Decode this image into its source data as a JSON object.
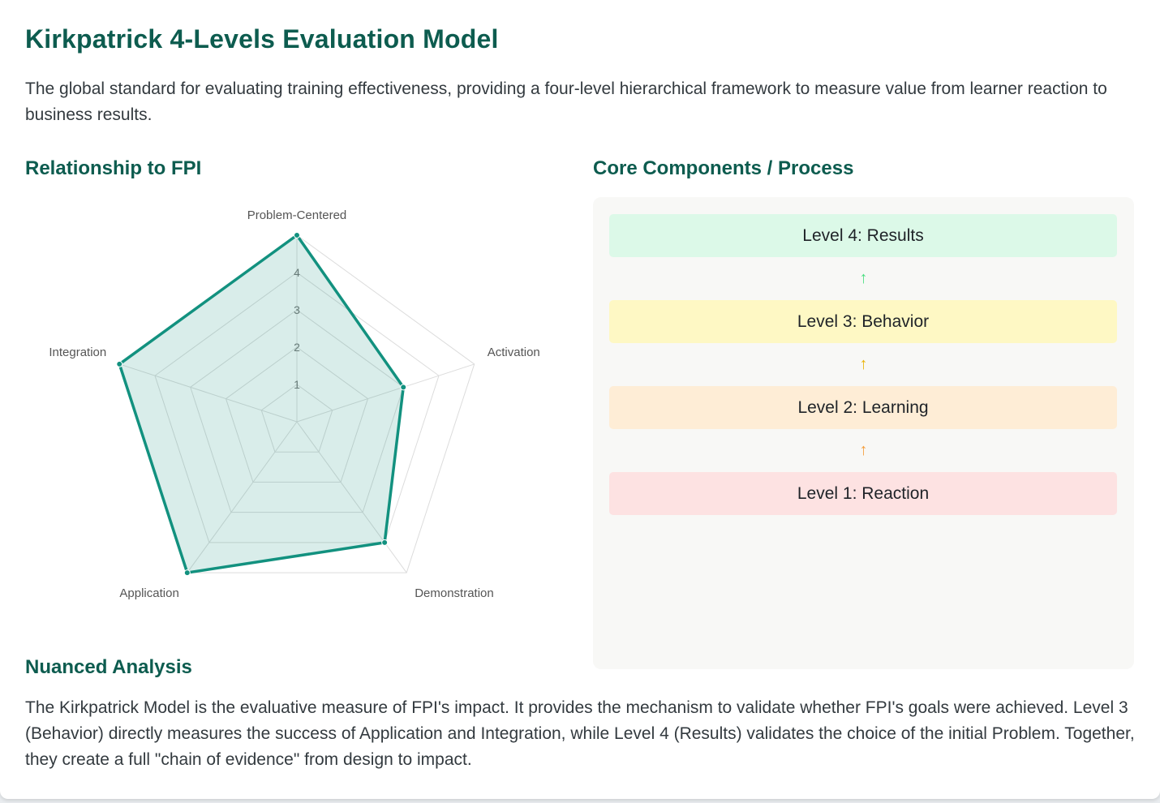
{
  "header": {
    "title": "Kirkpatrick 4-Levels Evaluation Model",
    "description": "The global standard for evaluating training effectiveness, providing a four-level hierarchical framework to measure value from learner reaction to business results."
  },
  "relationship": {
    "heading": "Relationship to FPI"
  },
  "chart_data": {
    "type": "radar",
    "title": "",
    "axes": [
      "Problem-Centered",
      "Activation",
      "Demonstration",
      "Application",
      "Integration"
    ],
    "series": [
      {
        "values": [
          5,
          3,
          4,
          5,
          5
        ]
      }
    ],
    "scale": {
      "min": 0,
      "max": 5,
      "ticks": [
        1,
        2,
        3,
        4
      ]
    },
    "grid": true,
    "legend": "none",
    "colors": {
      "line": "#12917f",
      "fill": "#12917f",
      "grid": "#dcdcdc"
    }
  },
  "core": {
    "heading": "Core Components / Process",
    "levels": [
      {
        "label": "Level 4: Results",
        "bg": "#dcf9e8",
        "arrow_color": "#4ade80"
      },
      {
        "label": "Level 3: Behavior",
        "bg": "#fef8c4",
        "arrow_color": "#eab308"
      },
      {
        "label": "Level 2: Learning",
        "bg": "#feedd6",
        "arrow_color": "#f59e3b"
      },
      {
        "label": "Level 1: Reaction",
        "bg": "#fde2e2"
      }
    ],
    "arrow_icon": "↑"
  },
  "analysis": {
    "heading": "Nuanced Analysis",
    "text": "The Kirkpatrick Model is the evaluative measure of FPI's impact. It provides the mechanism to validate whether FPI's goals were achieved. Level 3 (Behavior) directly measures the success of Application and Integration, while Level 4 (Results) validates the choice of the initial Problem. Together, they create a full \"chain of evidence\" from design to impact."
  }
}
